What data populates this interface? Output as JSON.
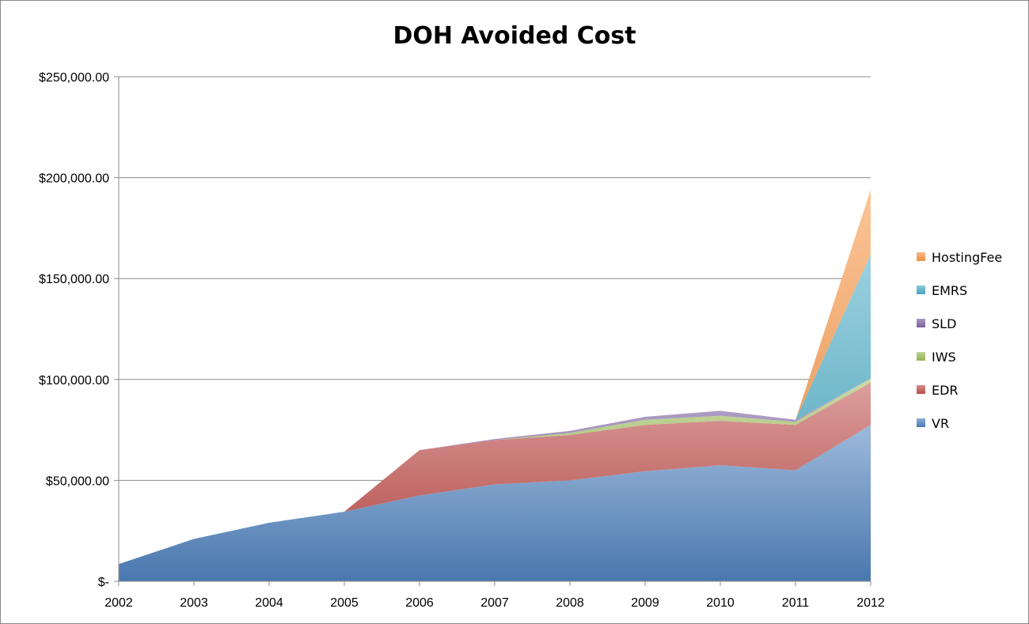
{
  "chart_data": {
    "type": "area",
    "stacked": true,
    "title": "DOH Avoided Cost",
    "xlabel": "",
    "ylabel": "",
    "categories": [
      "2002",
      "2003",
      "2004",
      "2005",
      "2006",
      "2007",
      "2008",
      "2009",
      "2010",
      "2011",
      "2012"
    ],
    "ylim": [
      0,
      250000
    ],
    "yticks": [
      0,
      50000,
      100000,
      150000,
      200000,
      250000
    ],
    "ytick_labels": [
      "$-",
      "$50,000.00",
      "$100,000.00",
      "$150,000.00",
      "$200,000.00",
      "$250,000.00"
    ],
    "grid": true,
    "legend_position": "right",
    "series": [
      {
        "name": "VR",
        "color": "#4f81bd",
        "values": [
          8500,
          21000,
          29000,
          34500,
          42500,
          48000,
          50000,
          54500,
          57500,
          55000,
          77500
        ]
      },
      {
        "name": "EDR",
        "color": "#c0504d",
        "values": [
          0,
          0,
          0,
          0,
          22500,
          22000,
          22500,
          23000,
          22000,
          22500,
          21000
        ]
      },
      {
        "name": "IWS",
        "color": "#9bbb59",
        "values": [
          0,
          0,
          0,
          0,
          0,
          0,
          1000,
          2500,
          2500,
          1500,
          2000
        ]
      },
      {
        "name": "SLD",
        "color": "#8064a2",
        "values": [
          0,
          0,
          0,
          0,
          0,
          500,
          1000,
          1500,
          2500,
          1000,
          0
        ]
      },
      {
        "name": "EMRS",
        "color": "#4bacc6",
        "values": [
          0,
          0,
          0,
          0,
          0,
          0,
          0,
          0,
          0,
          0,
          61500
        ]
      },
      {
        "name": "HostingFee",
        "color": "#f79646",
        "values": [
          0,
          0,
          0,
          0,
          0,
          0,
          0,
          0,
          0,
          0,
          32000
        ]
      }
    ],
    "legend_order": [
      "HostingFee",
      "EMRS",
      "SLD",
      "IWS",
      "EDR",
      "VR"
    ]
  }
}
